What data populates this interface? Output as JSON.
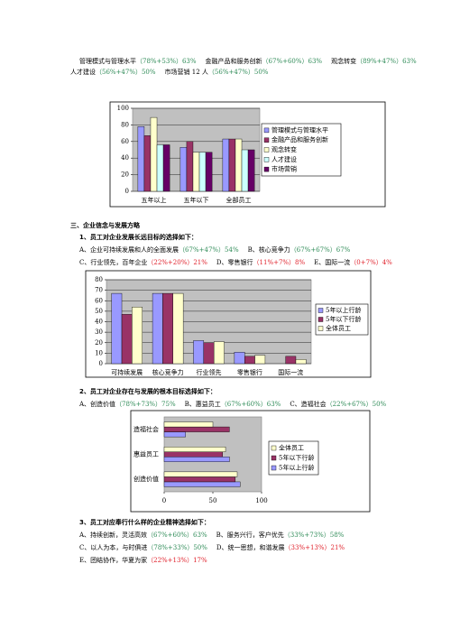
{
  "document": {
    "top_lines": [
      [
        {
          "label": "管理模式与管理水平",
          "detail": "（78%+53%）63%",
          "color": "#2e8b57"
        },
        {
          "label": "金融产品和服务创新",
          "detail": "（67%+60%）63%",
          "color": "#2e8b57"
        },
        {
          "label": "观念转变",
          "detail": "（89%+47%）63%",
          "color": "#2e8b57"
        }
      ],
      [
        {
          "label": "人才建设",
          "detail": "（56%+47%）50%",
          "color": "#2e8b57"
        },
        {
          "label": "市场营销 12 人",
          "detail": "（56%+47%）50%",
          "color": "#2e8b57"
        }
      ]
    ],
    "section_title": "三、企业信念与发展方略",
    "questions": [
      {
        "title": "1、员工对企业发展长远目标的选择如下：",
        "lines": [
          [
            {
              "label": "A、企业可持续发展和人的全面发展",
              "detail": "（67%+47%）54%",
              "color": "#2e8b57"
            },
            {
              "label": "B、核心竞争力",
              "detail": "（67%+67%）67%",
              "color": "#2e8b57"
            }
          ],
          [
            {
              "label": "C、行业领先，百年企业",
              "detail": "（22%+20%）21%",
              "color": "#e0202a"
            },
            {
              "label": "D、零售银行",
              "detail": "（11%+7%）8%",
              "color": "#e0202a"
            },
            {
              "label": "E、国际一流",
              "detail": "（0+7%）4%",
              "color": "#e0202a"
            }
          ]
        ]
      },
      {
        "title": "2、员工对企业存在与发展的根本目标选择如下：",
        "lines": [
          [
            {
              "label": "A、创造价值",
              "detail": "（78%+73%）75%",
              "color": "#2e8b57"
            },
            {
              "label": "B、惠益员工",
              "detail": "（67%+60%）63%",
              "color": "#2e8b57"
            },
            {
              "label": "C、造福社会",
              "detail": "（22%+67%）50%",
              "color": "#2e8b57"
            }
          ]
        ]
      },
      {
        "title": "3、员工对应奉行什么样的企业精神选择如下：",
        "lines": [
          [
            {
              "label": "A、持续创新，灵活高效",
              "detail": "（67%+60%）63%",
              "color": "#2e8b57"
            },
            {
              "label": "B、服务兴行，客户优先",
              "detail": "（33%+73%）58%",
              "color": "#2e8b57"
            }
          ],
          [
            {
              "label": "C、以人为本，与时俱进",
              "detail": "（78%+33%）50%",
              "color": "#2e8b57"
            },
            {
              "label": "D、统一思想，和谐发展",
              "detail": "（33%+13%）21%",
              "color": "#e0202a"
            }
          ],
          [
            {
              "label": "E、团结协作，华夏为家",
              "detail": "（22%+13%）17%",
              "color": "#e0202a"
            }
          ]
        ]
      }
    ]
  },
  "chart_data": [
    {
      "type": "bar",
      "categories": [
        "五年以上",
        "五年以下",
        "全部员工"
      ],
      "series": [
        {
          "name": "管理模式与管理水平",
          "color": "#9999ff",
          "values": [
            78,
            53,
            63
          ]
        },
        {
          "name": "金融产品和服务创新",
          "color": "#993366",
          "values": [
            67,
            60,
            63
          ]
        },
        {
          "name": "观念转变",
          "color": "#ffffcc",
          "values": [
            89,
            47,
            63
          ]
        },
        {
          "name": "人才建设",
          "color": "#ccffff",
          "values": [
            56,
            47,
            50
          ]
        },
        {
          "name": "市场营销",
          "color": "#660066",
          "values": [
            56,
            47,
            50
          ]
        }
      ],
      "ylim": [
        0,
        100
      ],
      "yticks": [
        0,
        20,
        40,
        60,
        80,
        100
      ],
      "grid": true,
      "legend": "right"
    },
    {
      "type": "bar",
      "categories": [
        "可持续发展",
        "核心竞争力",
        "行业领先",
        "零售银行",
        "国际一流"
      ],
      "series": [
        {
          "name": "5年以上行龄",
          "color": "#9999ff",
          "values": [
            67,
            67,
            22,
            11,
            0
          ]
        },
        {
          "name": "5年以下行龄",
          "color": "#993366",
          "values": [
            47,
            67,
            20,
            7,
            7
          ]
        },
        {
          "name": "全体员工",
          "color": "#ffffcc",
          "values": [
            54,
            67,
            21,
            8,
            4
          ]
        }
      ],
      "ylim": [
        0,
        80
      ],
      "yticks": [
        0,
        10,
        20,
        30,
        40,
        50,
        60,
        70,
        80
      ],
      "grid": true,
      "legend": "right"
    },
    {
      "type": "barh",
      "categories": [
        "创造价值",
        "惠益员工",
        "造福社会"
      ],
      "series": [
        {
          "name": "5年以上行龄",
          "color": "#9999ff",
          "values": [
            78,
            67,
            22
          ]
        },
        {
          "name": "5年以下行龄",
          "color": "#993366",
          "values": [
            73,
            60,
            67
          ]
        },
        {
          "name": "全体员工",
          "color": "#ffffcc",
          "values": [
            75,
            63,
            50
          ]
        }
      ],
      "xlim": [
        0,
        100
      ],
      "xticks": [
        0,
        50,
        100
      ],
      "grid": false,
      "legend": "right"
    }
  ]
}
